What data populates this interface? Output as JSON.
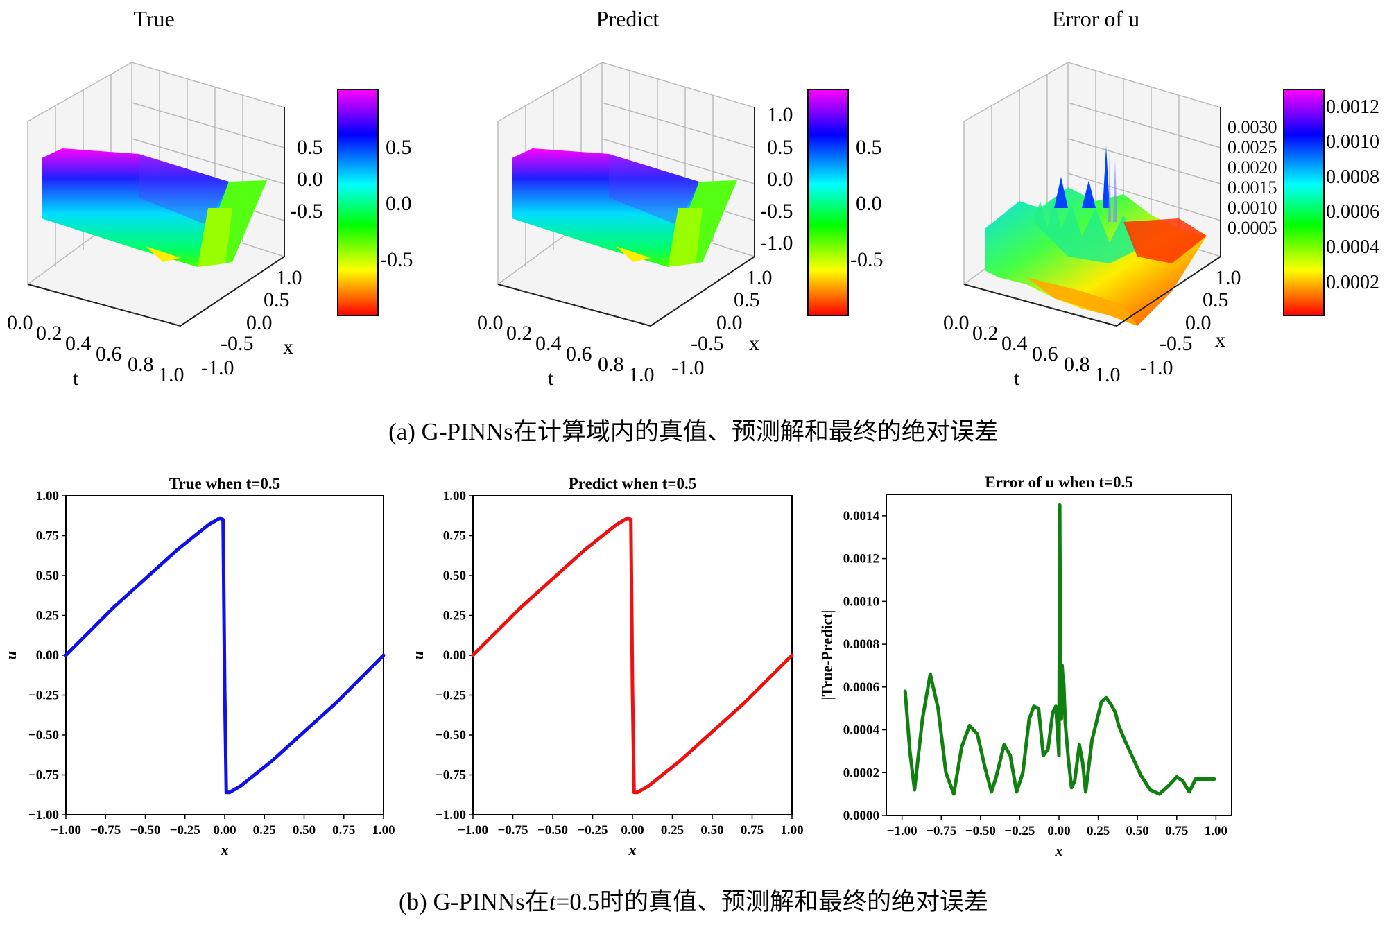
{
  "panel_a": {
    "caption": "(a) G-PINNs在计算域内的真值、预测解和最终的绝对误差",
    "plots": [
      {
        "title": "True",
        "t_label": "t",
        "x_label": "x",
        "t_ticks": [
          "0.0",
          "0.2",
          "0.4",
          "0.6",
          "0.8",
          "1.0"
        ],
        "x_ticks": [
          "1.0",
          "0.5",
          "0.0",
          "-0.5",
          "-1.0"
        ],
        "z_ticks": [
          "0.5",
          "0.0",
          "-0.5"
        ],
        "colorbar_ticks": [
          "0.5",
          "0.0",
          "-0.5"
        ],
        "colorbar_range": [
          -0.88,
          0.88
        ]
      },
      {
        "title": "Predict",
        "t_label": "t",
        "x_label": "x",
        "t_ticks": [
          "0.0",
          "0.2",
          "0.4",
          "0.6",
          "0.8",
          "1.0"
        ],
        "x_ticks": [
          "1.0",
          "0.5",
          "0.0",
          "-0.5",
          "-1.0"
        ],
        "z_ticks": [
          "1.0",
          "0.5",
          "0.0",
          "-0.5",
          "-1.0"
        ],
        "colorbar_ticks": [
          "0.5",
          "0.0",
          "-0.5"
        ],
        "colorbar_range": [
          -0.88,
          0.88
        ]
      },
      {
        "title": "Error of u",
        "t_label": "t",
        "x_label": "x",
        "t_ticks": [
          "0.0",
          "0.2",
          "0.4",
          "0.6",
          "0.8",
          "1.0"
        ],
        "x_ticks": [
          "1.0",
          "0.5",
          "0.0",
          "-0.5",
          "-1.0"
        ],
        "z_ticks": [
          "0.0030",
          "0.0025",
          "0.0020",
          "0.0015",
          "0.0010",
          "0.0005"
        ],
        "colorbar_ticks": [
          "0.0012",
          "0.0010",
          "0.0008",
          "0.0006",
          "0.0004",
          "0.0002"
        ],
        "colorbar_range": [
          0.0,
          0.0013
        ]
      }
    ],
    "colormap": [
      "#ff00ff",
      "#0000ff",
      "#00ffff",
      "#00ff00",
      "#ffff00",
      "#ff0000"
    ]
  },
  "panel_b": {
    "caption": "(b) G-PINNs在t=0.5时的真值、预测解和最终的绝对误差",
    "caption_parts": [
      "(b) G-PINNs在",
      "t",
      "=0.5时的真值、预测解和最终的绝对误差"
    ]
  },
  "chart_data": [
    {
      "type": "line",
      "title": "True when t=0.5",
      "xlabel": "x",
      "ylabel": "u",
      "xlim": [
        -1.0,
        1.0
      ],
      "ylim": [
        -1.0,
        1.0
      ],
      "xticks": [
        -1.0,
        -0.75,
        -0.5,
        -0.25,
        0.0,
        0.25,
        0.5,
        0.75,
        1.0
      ],
      "yticks": [
        1.0,
        0.75,
        0.5,
        0.25,
        0.0,
        -0.25,
        -0.5,
        -0.75,
        -1.0
      ],
      "xtick_labels": [
        "−1.00",
        "−0.75",
        "−0.50",
        "−0.25",
        "0.00",
        "0.25",
        "0.50",
        "0.75",
        "1.00"
      ],
      "ytick_labels": [
        "1.00",
        "0.75",
        "0.50",
        "0.25",
        "0.00",
        "−0.25",
        "−0.50",
        "−0.75",
        "−1.00"
      ],
      "color": "#1010e8",
      "x": [
        -1.0,
        -0.9,
        -0.8,
        -0.7,
        -0.6,
        -0.5,
        -0.4,
        -0.3,
        -0.2,
        -0.1,
        -0.03,
        -0.01,
        0.0,
        0.01,
        0.03,
        0.1,
        0.2,
        0.3,
        0.4,
        0.5,
        0.6,
        0.7,
        0.8,
        0.9,
        1.0
      ],
      "y": [
        0.0,
        0.1,
        0.2,
        0.3,
        0.39,
        0.48,
        0.57,
        0.66,
        0.74,
        0.82,
        0.86,
        0.85,
        -0.2,
        -0.86,
        -0.86,
        -0.82,
        -0.74,
        -0.66,
        -0.57,
        -0.48,
        -0.39,
        -0.3,
        -0.2,
        -0.1,
        0.0
      ]
    },
    {
      "type": "line",
      "title": "Predict when t=0.5",
      "xlabel": "x",
      "ylabel": "u",
      "xlim": [
        -1.0,
        1.0
      ],
      "ylim": [
        -1.0,
        1.0
      ],
      "xticks": [
        -1.0,
        -0.75,
        -0.5,
        -0.25,
        0.0,
        0.25,
        0.5,
        0.75,
        1.0
      ],
      "yticks": [
        1.0,
        0.75,
        0.5,
        0.25,
        0.0,
        -0.25,
        -0.5,
        -0.75,
        -1.0
      ],
      "xtick_labels": [
        "−1.00",
        "−0.75",
        "−0.50",
        "−0.25",
        "0.00",
        "0.25",
        "0.50",
        "0.75",
        "1.00"
      ],
      "ytick_labels": [
        "1.00",
        "0.75",
        "0.50",
        "0.25",
        "0.00",
        "−0.25",
        "−0.50",
        "−0.75",
        "−1.00"
      ],
      "color": "#ee1111",
      "x": [
        -1.0,
        -0.9,
        -0.8,
        -0.7,
        -0.6,
        -0.5,
        -0.4,
        -0.3,
        -0.2,
        -0.1,
        -0.03,
        -0.01,
        0.0,
        0.01,
        0.03,
        0.1,
        0.2,
        0.3,
        0.4,
        0.5,
        0.6,
        0.7,
        0.8,
        0.9,
        1.0
      ],
      "y": [
        0.0,
        0.1,
        0.2,
        0.3,
        0.39,
        0.48,
        0.57,
        0.66,
        0.74,
        0.82,
        0.86,
        0.85,
        -0.2,
        -0.86,
        -0.86,
        -0.82,
        -0.74,
        -0.66,
        -0.57,
        -0.48,
        -0.39,
        -0.3,
        -0.2,
        -0.1,
        0.0
      ]
    },
    {
      "type": "line",
      "title": "Error of u when t=0.5",
      "xlabel": "x",
      "ylabel": "|True-Predict|",
      "xlim": [
        -1.1,
        1.1
      ],
      "ylim": [
        0.0,
        0.0015
      ],
      "xticks": [
        -1.0,
        -0.75,
        -0.5,
        -0.25,
        0.0,
        0.25,
        0.5,
        0.75,
        1.0
      ],
      "yticks": [
        0.0014,
        0.0012,
        0.001,
        0.0008,
        0.0006,
        0.0004,
        0.0002,
        0.0
      ],
      "xtick_labels": [
        "−1.00",
        "−0.75",
        "−0.50",
        "−0.25",
        "0.00",
        "0.25",
        "0.50",
        "0.75",
        "1.00"
      ],
      "ytick_labels": [
        "0.0014",
        "0.0012",
        "0.0010",
        "0.0008",
        "0.0006",
        "0.0004",
        "0.0002",
        "0.0000"
      ],
      "color": "#108010",
      "x": [
        -0.98,
        -0.95,
        -0.92,
        -0.87,
        -0.82,
        -0.77,
        -0.72,
        -0.67,
        -0.62,
        -0.57,
        -0.52,
        -0.47,
        -0.43,
        -0.4,
        -0.35,
        -0.31,
        -0.27,
        -0.23,
        -0.19,
        -0.16,
        -0.13,
        -0.1,
        -0.07,
        -0.04,
        -0.02,
        0.0,
        0.005,
        0.01,
        0.015,
        0.02,
        0.025,
        0.03,
        0.04,
        0.06,
        0.08,
        0.1,
        0.13,
        0.15,
        0.17,
        0.19,
        0.21,
        0.24,
        0.27,
        0.3,
        0.33,
        0.36,
        0.38,
        0.42,
        0.47,
        0.52,
        0.58,
        0.64,
        0.7,
        0.75,
        0.79,
        0.83,
        0.87,
        0.9,
        0.93,
        0.95,
        0.97,
        0.99
      ],
      "y": [
        0.00058,
        0.0003,
        0.00012,
        0.00045,
        0.00066,
        0.0005,
        0.0002,
        0.0001,
        0.00032,
        0.00042,
        0.00038,
        0.00022,
        0.00011,
        0.00018,
        0.00033,
        0.00028,
        0.00011,
        0.0002,
        0.00045,
        0.00051,
        0.0005,
        0.00028,
        0.00031,
        0.00048,
        0.00051,
        0.00028,
        0.00145,
        0.0006,
        0.00045,
        0.0007,
        0.00064,
        0.00062,
        0.00043,
        0.00026,
        0.00013,
        0.00016,
        0.00033,
        0.00025,
        0.00011,
        0.00023,
        0.00035,
        0.00044,
        0.00053,
        0.00055,
        0.00052,
        0.00048,
        0.00042,
        0.00035,
        0.00027,
        0.00019,
        0.00012,
        0.0001,
        0.00014,
        0.00018,
        0.00016,
        0.00011,
        0.00017,
        0.00017,
        0.00017,
        0.00017,
        0.00017,
        0.00017
      ]
    }
  ]
}
